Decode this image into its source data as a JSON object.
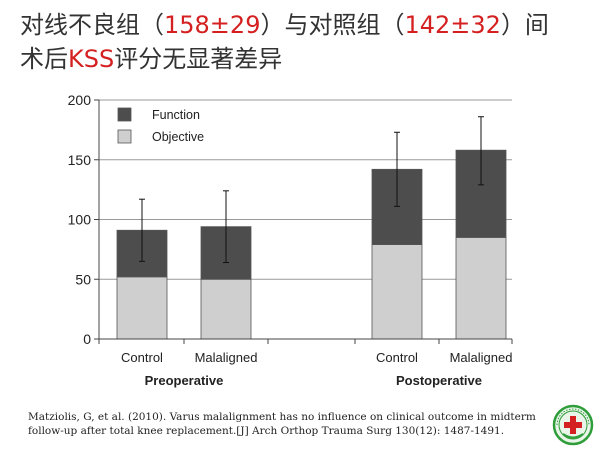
{
  "title": {
    "line1_a": "对线不良组（",
    "line1_red1": "158±29",
    "line1_b": "）与对照组（",
    "line1_red2": "142±32",
    "line1_c": "）间",
    "line2_a": "术后",
    "line2_red": "KSS",
    "line2_b": "评分无显著差异"
  },
  "chart_data": {
    "type": "bar",
    "stacked": true,
    "groups": [
      "Preoperative",
      "Postoperative"
    ],
    "categories": [
      {
        "group": "Preoperative",
        "label": "Control"
      },
      {
        "group": "Preoperative",
        "label": "Malaligned"
      },
      {
        "group": "Postoperative",
        "label": "Control"
      },
      {
        "group": "Postoperative",
        "label": "Malaligned"
      }
    ],
    "series": [
      {
        "name": "Objective",
        "values": [
          52,
          50,
          79,
          85
        ],
        "color": "#cfcfcf"
      },
      {
        "name": "Function",
        "values": [
          39,
          44,
          63,
          73
        ],
        "color": "#4d4d4d"
      }
    ],
    "error_bars": [
      {
        "low": 65,
        "high": 117
      },
      {
        "low": 64,
        "high": 124
      },
      {
        "low": 111,
        "high": 173
      },
      {
        "low": 129,
        "high": 186
      }
    ],
    "ylim": [
      0,
      200
    ],
    "yticks": [
      0,
      50,
      100,
      150,
      200
    ],
    "legend_position": "top-left",
    "grid": true,
    "axis_color": "#444444"
  },
  "citation": {
    "line1": "Matziolis, G, et al. (2010). Varus malalignment has no influence on clinical outcome in midterm",
    "line2": "follow-up after total knee replacement.[J] Arch Orthop Trauma Surg 130(12): 1487-1491."
  },
  "logo": {
    "name": "hospital-emblem"
  }
}
